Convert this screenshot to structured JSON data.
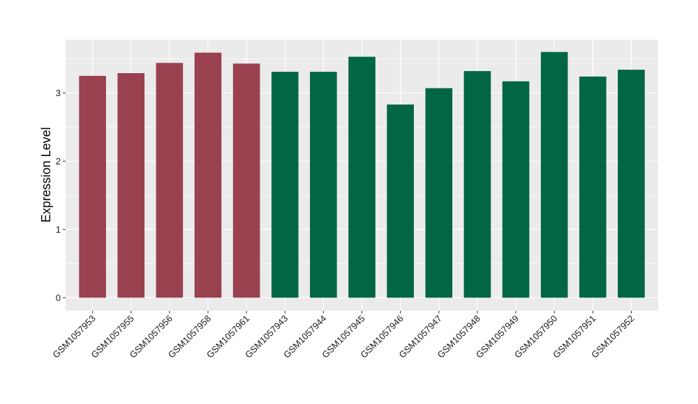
{
  "chart_data": {
    "type": "bar",
    "title": "",
    "xlabel": "",
    "ylabel": "Expression Level",
    "categories": [
      "GSM1057953",
      "GSM1057955",
      "GSM1057956",
      "GSM1057958",
      "GSM1057961",
      "GSM1057943",
      "GSM1057944",
      "GSM1057945",
      "GSM1057946",
      "GSM1057947",
      "GSM1057948",
      "GSM1057949",
      "GSM1057950",
      "GSM1057951",
      "GSM1057952"
    ],
    "values": [
      3.25,
      3.29,
      3.44,
      3.59,
      3.43,
      3.31,
      3.31,
      3.53,
      2.83,
      3.07,
      3.32,
      3.17,
      3.6,
      3.24,
      3.34
    ],
    "groups": [
      1,
      1,
      1,
      1,
      1,
      2,
      2,
      2,
      2,
      2,
      2,
      2,
      2,
      2,
      2
    ],
    "group_colors": {
      "1": "#9a4150",
      "2": "#006644"
    },
    "ylim": [
      -0.19,
      3.78
    ],
    "yticks": [
      0,
      1,
      2,
      3
    ],
    "panel_background": "#ebebeb",
    "grid_color": "#ffffff",
    "grid": true,
    "legend": "none"
  }
}
